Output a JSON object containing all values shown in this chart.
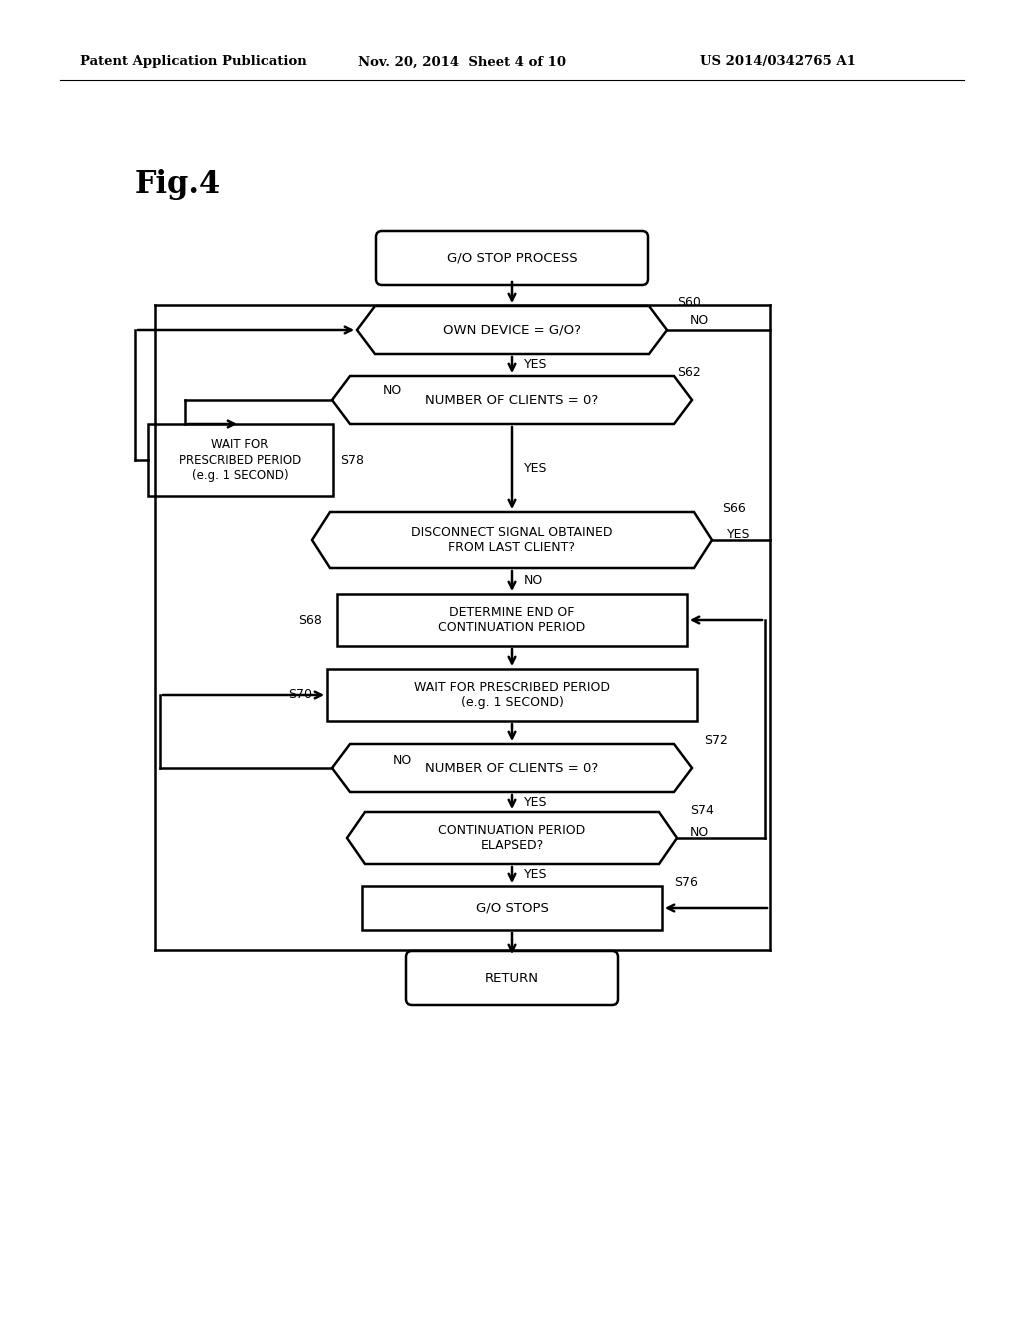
{
  "bg_color": "#ffffff",
  "header_left": "Patent Application Publication",
  "header_mid": "Nov. 20, 2014  Sheet 4 of 10",
  "header_right": "US 2014/0342765 A1",
  "fig_label": "Fig.4"
}
